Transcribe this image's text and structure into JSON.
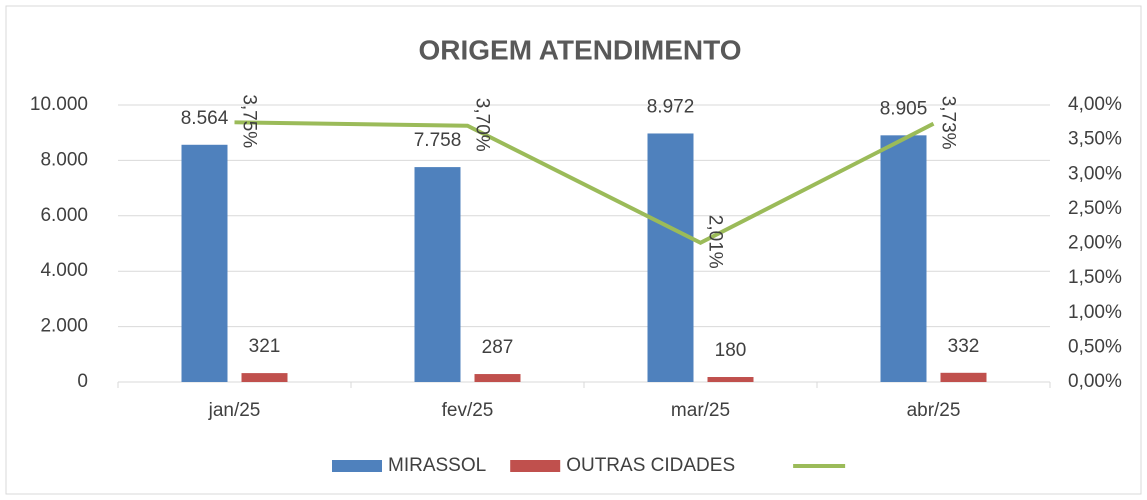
{
  "chart_data": {
    "type": "bar",
    "title": "ORIGEM ATENDIMENTO",
    "categories": [
      "jan/25",
      "fev/25",
      "mar/25",
      "abr/25"
    ],
    "series": [
      {
        "name": "MIRASSOL",
        "type": "bar",
        "color": "#4f81bd",
        "values": [
          8564,
          7758,
          8972,
          8905
        ],
        "value_labels": [
          "8.564",
          "7.758",
          "8.972",
          "8.905"
        ]
      },
      {
        "name": "OUTRAS CIDADES",
        "type": "bar",
        "color": "#c0504d",
        "values": [
          321,
          287,
          180,
          332
        ]
      },
      {
        "type": "line",
        "axis": "y2",
        "color": "#9bbb59",
        "values": [
          3.75,
          3.7,
          2.01,
          3.73
        ],
        "value_labels": [
          "3,75%",
          "3,70%",
          "2,01%",
          "3,73%"
        ]
      }
    ],
    "ylim": [
      0,
      10000
    ],
    "yticks": [
      0,
      {
        "value": 2000,
        "label": "2.000"
      },
      {
        "value": 4000,
        "label": "4.000"
      },
      {
        "value": 6000,
        "label": "6.000"
      },
      {
        "value": 8000,
        "label": "8.000"
      },
      {
        "value": 10000,
        "label": "10.000"
      }
    ],
    "y2lim": [
      0,
      4
    ],
    "y2ticks": [
      {
        "value": 0,
        "label": "0,00%"
      },
      {
        "value": 0.5,
        "label": "0,50%"
      },
      {
        "value": 1,
        "label": "1,00%"
      },
      {
        "value": 1.5,
        "label": "1,50%"
      },
      {
        "value": 2,
        "label": "2,00%"
      },
      {
        "value": 2.5,
        "label": "2,50%"
      },
      {
        "value": 3,
        "label": "3,00%"
      },
      {
        "value": 3.5,
        "label": "3,50%"
      },
      {
        "value": 4,
        "label": "4,00%"
      }
    ],
    "grid": true,
    "legend": "bottom"
  }
}
